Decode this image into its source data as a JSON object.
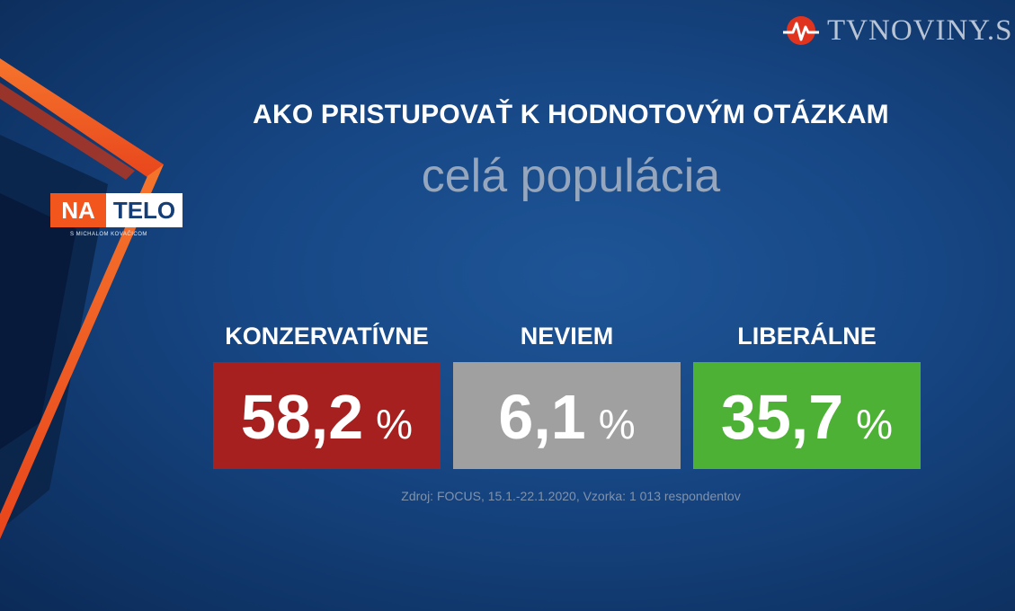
{
  "watermark": {
    "icon": "heartbeat-logo-icon",
    "text": "TVNOVINY.S"
  },
  "logo": {
    "part1": "NA",
    "part2": "TELO",
    "subtitle": "S MICHALOM KOVAČICOM",
    "accent": "#f2561d"
  },
  "header": {
    "title": "AKO PRISTUPOVAŤ K HODNOTOVÝM OTÁZKAM",
    "subtitle": "celá populácia"
  },
  "chart_data": {
    "type": "bar",
    "title": "AKO PRISTUPOVAŤ K HODNOTOVÝM OTÁZKAM",
    "subtitle": "celá populácia",
    "categories": [
      "KONZERVATÍVNE",
      "NEVIEM",
      "LIBERÁLNE"
    ],
    "values": [
      58.2,
      6.1,
      35.7
    ],
    "value_labels": [
      "58,2",
      "6,1",
      "35,7"
    ],
    "unit": "%",
    "colors": [
      "#a6201f",
      "#a0a0a0",
      "#4db135"
    ],
    "grid": false
  },
  "source": "Zdroj: FOCUS, 15.1.-22.1.2020, Vzorka: 1 013 respondentov"
}
